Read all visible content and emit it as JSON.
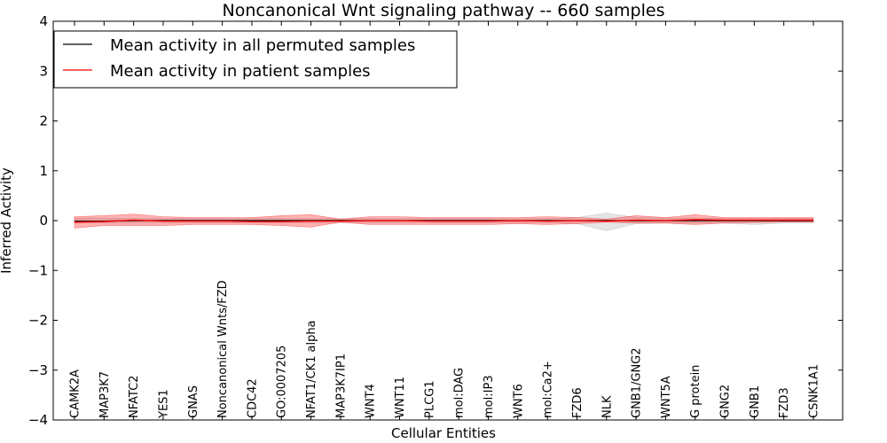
{
  "chart_data": {
    "type": "line",
    "title": "Noncanonical Wnt signaling pathway -- 660 samples",
    "xlabel": "Cellular Entities",
    "ylabel": "Inferred Activity",
    "ylim": [
      -4,
      4
    ],
    "yticks": [
      4,
      3,
      2,
      1,
      0,
      -1,
      -2,
      -3,
      -4
    ],
    "ytick_labels": [
      "4",
      "3",
      "2",
      "1",
      "0",
      "−1",
      "−2",
      "−3",
      "−4"
    ],
    "grid": false,
    "legend_position": "top-left",
    "categories": [
      "CAMK2A",
      "MAP3K7",
      "NFATC2",
      "YES1",
      "GNAS",
      "Noncanonical Wnts/FZD",
      "CDC42",
      "GO:0007205",
      "NFAT1/CK1 alpha",
      "MAP3K7IP1",
      "WNT4",
      "WNT11",
      "PLCG1",
      "mol:DAG",
      "mol:IP3",
      "WNT6",
      "mol:Ca2+",
      "FZD6",
      "NLK",
      "GNB1/GNG2",
      "WNT5A",
      "G protein",
      "GNG2",
      "GNB1",
      "FZD3",
      "CSNK1A1"
    ],
    "series": [
      {
        "name": "Mean activity in all permuted samples",
        "color": "#000000",
        "values": [
          -0.01,
          -0.01,
          0.0,
          0.0,
          0.0,
          0.0,
          0.0,
          0.0,
          0.0,
          0.0,
          0.0,
          0.0,
          0.0,
          0.0,
          0.0,
          0.0,
          0.0,
          0.0,
          0.0,
          0.0,
          0.0,
          0.0,
          0.0,
          0.0,
          0.0,
          0.0
        ],
        "band_lower": [
          -0.05,
          -0.05,
          -0.04,
          -0.04,
          -0.04,
          -0.04,
          -0.04,
          -0.04,
          -0.04,
          -0.04,
          -0.04,
          -0.04,
          -0.04,
          -0.04,
          -0.04,
          -0.04,
          -0.04,
          -0.06,
          -0.2,
          -0.06,
          -0.05,
          -0.05,
          -0.05,
          -0.08,
          -0.05,
          -0.05
        ],
        "band_upper": [
          0.05,
          0.05,
          0.04,
          0.04,
          0.04,
          0.04,
          0.04,
          0.04,
          0.04,
          0.04,
          0.04,
          0.04,
          0.04,
          0.04,
          0.04,
          0.04,
          0.04,
          0.06,
          0.15,
          0.06,
          0.05,
          0.05,
          0.05,
          0.05,
          0.05,
          0.05
        ]
      },
      {
        "name": "Mean activity in patient samples",
        "color": "#ff0000",
        "values": [
          -0.03,
          -0.02,
          0.01,
          -0.01,
          -0.01,
          -0.01,
          -0.02,
          -0.02,
          -0.01,
          -0.01,
          0.0,
          0.0,
          -0.01,
          -0.01,
          -0.01,
          0.0,
          -0.01,
          0.0,
          -0.01,
          0.01,
          0.0,
          0.02,
          0.01,
          0.01,
          0.01,
          0.01
        ],
        "band_lower": [
          -0.15,
          -0.1,
          -0.1,
          -0.1,
          -0.08,
          -0.08,
          -0.08,
          -0.1,
          -0.13,
          -0.03,
          -0.08,
          -0.08,
          -0.08,
          -0.08,
          -0.08,
          -0.06,
          -0.08,
          -0.06,
          -0.03,
          -0.05,
          -0.05,
          -0.08,
          -0.05,
          -0.04,
          -0.03,
          -0.03
        ],
        "band_upper": [
          0.08,
          0.1,
          0.13,
          0.08,
          0.06,
          0.06,
          0.06,
          0.1,
          0.12,
          0.03,
          0.08,
          0.08,
          0.06,
          0.06,
          0.06,
          0.06,
          0.08,
          0.06,
          0.03,
          0.1,
          0.06,
          0.12,
          0.06,
          0.06,
          0.06,
          0.06
        ]
      }
    ]
  }
}
